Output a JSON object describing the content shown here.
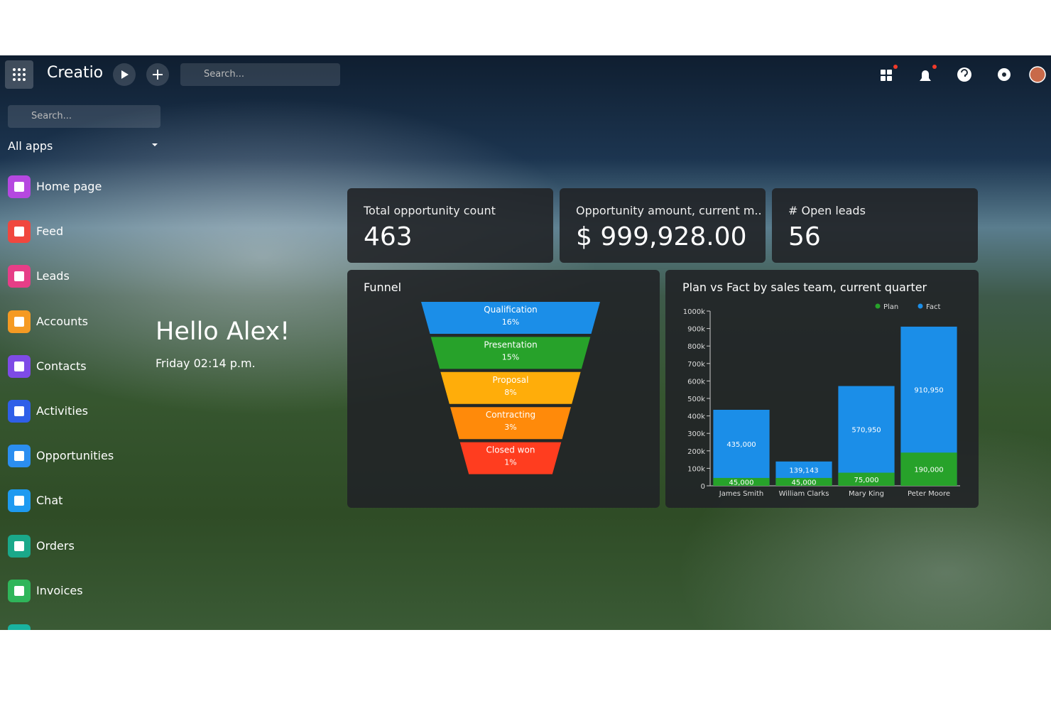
{
  "topbar": {
    "logo": "Creatio",
    "search": "Search..."
  },
  "sidebar": {
    "search": "Search...",
    "apps": "All apps",
    "items": [
      "Home page",
      "Feed",
      "Leads",
      "Accounts",
      "Contacts",
      "Activities",
      "Opportunities",
      "Chat",
      "Orders",
      "Invoices"
    ]
  },
  "greeting": {
    "title": "Hello Alex!",
    "time": "Friday 02:14 p.m."
  },
  "kpis": [
    {
      "title": "Total opportunity count",
      "value": "463"
    },
    {
      "title": "Opportunity amount, current m..",
      "value": "$ 999,928.00"
    },
    {
      "title": "# Open leads",
      "value": "56"
    }
  ],
  "chart_data": [
    {
      "type": "funnel",
      "title": "Funnel",
      "categories": [
        "Qualification",
        "Presentation",
        "Proposal",
        "Contracting",
        "Closed won"
      ],
      "values": [
        16,
        15,
        8,
        3,
        1
      ],
      "value_labels": [
        "16%",
        "15%",
        "8%",
        "3%",
        "1%"
      ],
      "colors": [
        "#1b8ee8",
        "#27a22a",
        "#ffad0a",
        "#ff8a0a",
        "#ff3d1f"
      ]
    },
    {
      "type": "bar",
      "title": "Plan vs Fact by sales team, current quarter",
      "categories": [
        "James Smith",
        "William Clarks",
        "Mary King",
        "Peter Moore"
      ],
      "series": [
        {
          "name": "Plan",
          "color": "#27a22a",
          "values": [
            45000,
            45000,
            75000,
            190000
          ],
          "value_labels": [
            "45,000",
            "45,000",
            "75,000",
            "190,000"
          ]
        },
        {
          "name": "Fact",
          "color": "#1b8ee8",
          "values": [
            435000,
            139143,
            570950,
            910950
          ],
          "value_labels": [
            "435,000",
            "139,143",
            "570,950",
            "910,950"
          ]
        }
      ],
      "ylim": [
        0,
        1000000
      ],
      "yticks": [
        {
          "value": 0,
          "label": "0"
        },
        {
          "value": 100000,
          "label": "100k"
        },
        {
          "value": 200000,
          "label": "200k"
        },
        {
          "value": 300000,
          "label": "300k"
        },
        {
          "value": 400000,
          "label": "400k"
        },
        {
          "value": 500000,
          "label": "500k"
        },
        {
          "value": 600000,
          "label": "600k"
        },
        {
          "value": 700000,
          "label": "700k"
        },
        {
          "value": 800000,
          "label": "800k"
        },
        {
          "value": 900000,
          "label": "900k"
        },
        {
          "value": 1000000,
          "label": "1000k"
        }
      ],
      "legend": "top-right"
    }
  ]
}
